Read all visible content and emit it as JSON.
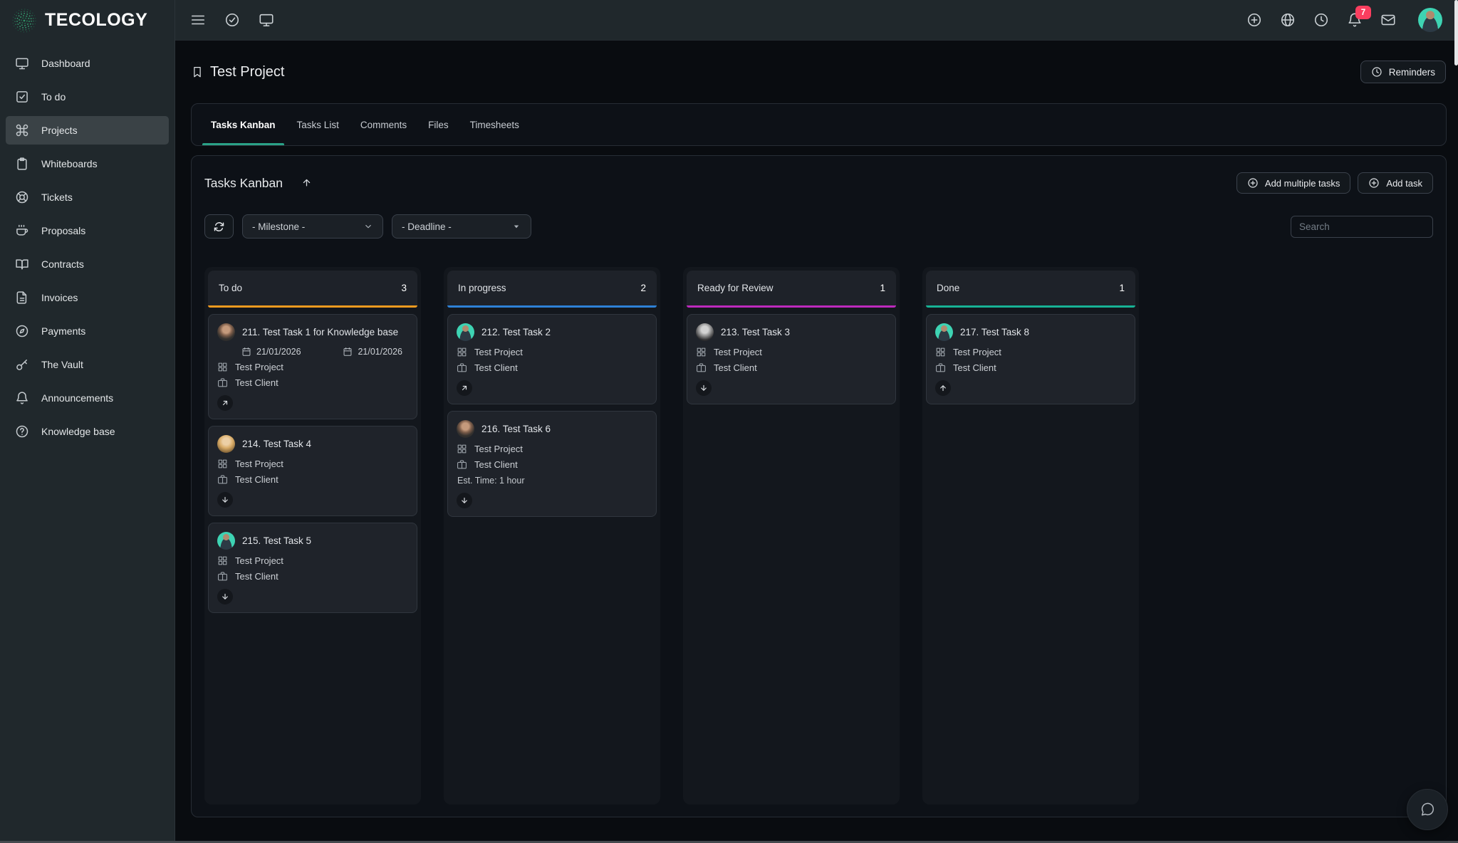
{
  "brand": {
    "name": "TECOLOGY",
    "logo_color": "#2f9065"
  },
  "topbar": {
    "left_icons": [
      "menu",
      "check-circle",
      "monitor"
    ],
    "right_icons": [
      "plus-circle",
      "globe",
      "clock",
      "bell",
      "mail"
    ],
    "notification_count": "7",
    "avatar": "man-teal"
  },
  "sidebar": {
    "items": [
      {
        "label": "Dashboard",
        "icon": "monitor",
        "active": false
      },
      {
        "label": "To do",
        "icon": "check-square",
        "active": false
      },
      {
        "label": "Projects",
        "icon": "command",
        "active": true
      },
      {
        "label": "Whiteboards",
        "icon": "clipboard",
        "active": false
      },
      {
        "label": "Tickets",
        "icon": "life-buoy",
        "active": false
      },
      {
        "label": "Proposals",
        "icon": "coffee",
        "active": false
      },
      {
        "label": "Contracts",
        "icon": "book-open",
        "active": false
      },
      {
        "label": "Invoices",
        "icon": "file-text",
        "active": false
      },
      {
        "label": "Payments",
        "icon": "compass",
        "active": false
      },
      {
        "label": "The Vault",
        "icon": "key",
        "active": false
      },
      {
        "label": "Announcements",
        "icon": "bell",
        "active": false
      },
      {
        "label": "Knowledge base",
        "icon": "help-circle",
        "active": false
      }
    ]
  },
  "page": {
    "title": "Test Project",
    "reminders_label": "Reminders"
  },
  "tabs": {
    "items": [
      {
        "label": "Tasks Kanban",
        "active": true
      },
      {
        "label": "Tasks List",
        "active": false
      },
      {
        "label": "Comments",
        "active": false
      },
      {
        "label": "Files",
        "active": false
      },
      {
        "label": "Timesheets",
        "active": false
      }
    ]
  },
  "section": {
    "title": "Tasks Kanban",
    "add_multiple_label": "Add multiple tasks",
    "add_task_label": "Add task"
  },
  "filters": {
    "milestone_value": "- Milestone -",
    "deadline_value": "- Deadline -",
    "search_placeholder": "Search"
  },
  "board": {
    "columns": [
      {
        "name": "To do",
        "count": "3",
        "accent": "#f09a1f",
        "cards": [
          {
            "title": "211. Test Task 1 for Knowledge base",
            "avatar": "man-photo",
            "start_date": "21/01/2026",
            "due_date": "21/01/2026",
            "project": "Test Project",
            "client": "Test Client",
            "action_icon": "arrow-up-right"
          },
          {
            "title": "214. Test Task 4",
            "avatar": "woman-blonde",
            "project": "Test Project",
            "client": "Test Client",
            "action_icon": "arrow-down"
          },
          {
            "title": "215. Test Task 5",
            "avatar": "man-teal",
            "project": "Test Project",
            "client": "Test Client",
            "action_icon": "arrow-down"
          }
        ]
      },
      {
        "name": "In progress",
        "count": "2",
        "accent": "#2e81d6",
        "cards": [
          {
            "title": "212. Test Task 2",
            "avatar": "man-teal",
            "project": "Test Project",
            "client": "Test Client",
            "action_icon": "arrow-up-right"
          },
          {
            "title": "216. Test Task 6",
            "avatar": "man-photo",
            "project": "Test Project",
            "client": "Test Client",
            "est_time": "Est. Time: 1 hour",
            "action_icon": "arrow-down"
          }
        ]
      },
      {
        "name": "Ready for Review",
        "count": "1",
        "accent": "#bd2abd",
        "cards": [
          {
            "title": "213. Test Task 3",
            "avatar": "man-gray",
            "project": "Test Project",
            "client": "Test Client",
            "action_icon": "arrow-down"
          }
        ]
      },
      {
        "name": "Done",
        "count": "1",
        "accent": "#17b295",
        "cards": [
          {
            "title": "217. Test Task 8",
            "avatar": "man-teal",
            "project": "Test Project",
            "client": "Test Client",
            "action_icon": "arrow-up"
          }
        ]
      }
    ]
  }
}
